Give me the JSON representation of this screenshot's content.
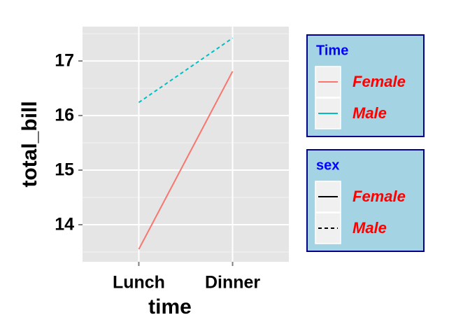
{
  "chart_data": {
    "type": "line",
    "x_label": "time",
    "y_label": "total_bill",
    "categories": [
      "Lunch",
      "Dinner"
    ],
    "series": [
      {
        "name": "Female",
        "color": "#F8766D",
        "dash": "solid",
        "values": [
          13.55,
          16.81
        ]
      },
      {
        "name": "Male",
        "color": "#00BFC4",
        "dash": "dashed",
        "values": [
          16.24,
          17.42
        ]
      }
    ],
    "ylim": [
      13.32,
      17.63
    ],
    "yticks": [
      14,
      15,
      16,
      17
    ],
    "minor_yticks": [
      13.5,
      14.5,
      15.5,
      16.5,
      17.5
    ],
    "grid": true,
    "legends": [
      {
        "title": "Time",
        "keys": "color",
        "labels": [
          "Female",
          "Male"
        ]
      },
      {
        "title": "sex",
        "keys": "dash",
        "labels": [
          "Female",
          "Male"
        ]
      }
    ],
    "legend_position": "right"
  }
}
